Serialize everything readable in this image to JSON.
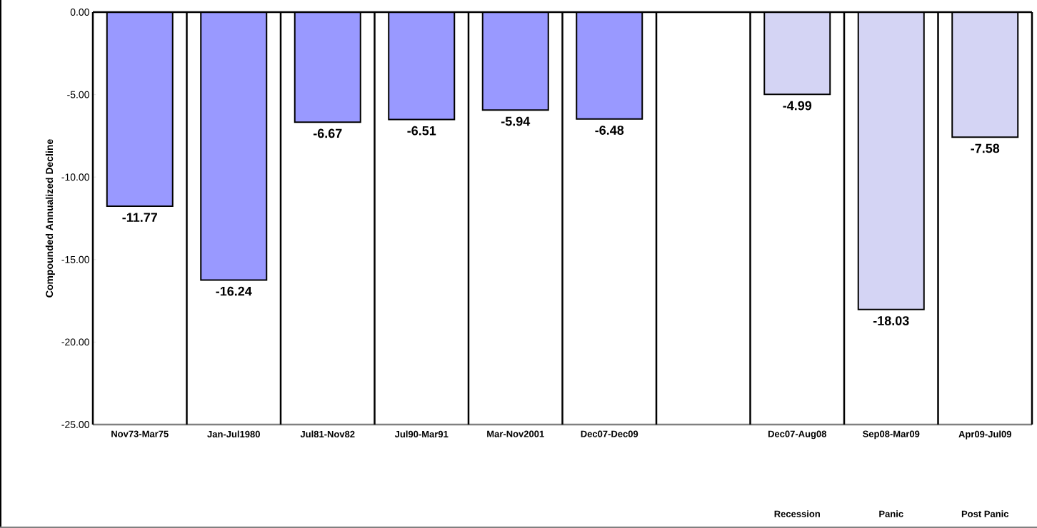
{
  "chart_data": {
    "type": "bar",
    "ylabel": "Compounded Annualized Decline",
    "categories": [
      "Nov73-Mar75",
      "Jan-Jul1980",
      "Jul81-Nov82",
      "Jul90-Mar91",
      "Mar-Nov2001",
      "Dec07-Dec09",
      null,
      "Dec07-Aug08",
      "Sep08-Mar09",
      "Apr09-Jul09"
    ],
    "values": [
      -11.77,
      -16.24,
      -6.67,
      -6.51,
      -5.94,
      -6.48,
      null,
      -4.99,
      -18.03,
      -7.58
    ],
    "colors": [
      "#9999ff",
      "#9999ff",
      "#9999ff",
      "#9999ff",
      "#9999ff",
      "#9999ff",
      "#9999ff",
      "#d4d4f4",
      "#d4d4f4",
      "#d4d4f4"
    ],
    "ylim": [
      -25,
      0
    ],
    "yticks": [
      {
        "value": -25,
        "label": "-25.00"
      },
      {
        "value": -20,
        "label": "-20.00"
      },
      {
        "value": -15,
        "label": "-15.00"
      },
      {
        "value": -10,
        "label": "-10.00"
      },
      {
        "value": -5,
        "label": "-5.00"
      },
      {
        "value": 0,
        "label": "0.00"
      }
    ],
    "data_labels": true,
    "annotations": [
      "Recession",
      "Panic",
      "Post Panic"
    ]
  }
}
